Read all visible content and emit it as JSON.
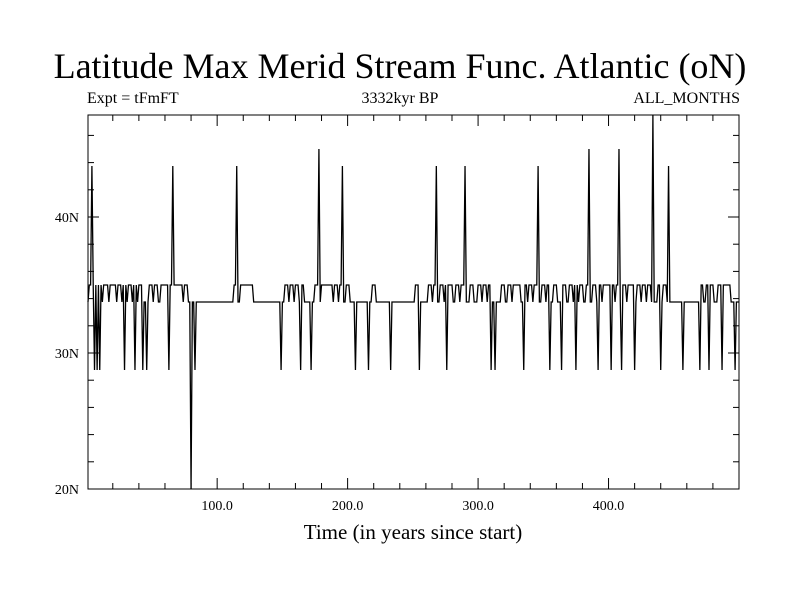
{
  "chart_data": {
    "type": "line",
    "title": "Latitude Max Merid Stream Func. Atlantic (oN)",
    "left_text": "Expt = tFmFT",
    "center_text": "3332kyr BP",
    "right_text": "ALL_MONTHS",
    "xlabel": "Time (in years since start)",
    "ylabel": "",
    "xlim": [
      1,
      500
    ],
    "ylim": [
      20,
      47.5
    ],
    "grid": false,
    "x_ticks": [
      {
        "value": 100,
        "label": "100.0"
      },
      {
        "value": 200,
        "label": "200.0"
      },
      {
        "value": 300,
        "label": "300.0"
      },
      {
        "value": 400,
        "label": "400.0"
      }
    ],
    "y_ticks": [
      {
        "value": 20,
        "label": "20N"
      },
      {
        "value": 30,
        "label": "30N"
      },
      {
        "value": 40,
        "label": "40N"
      }
    ],
    "baseline": 33.75,
    "levels": {
      "high": 35.0,
      "low": 28.75
    },
    "spikes": [
      {
        "x": 4,
        "y": 43.75
      },
      {
        "x": 66,
        "y": 43.75
      },
      {
        "x": 80,
        "y": 20.0
      },
      {
        "x": 115,
        "y": 43.75
      },
      {
        "x": 178,
        "y": 45.0
      },
      {
        "x": 196,
        "y": 43.75
      },
      {
        "x": 268,
        "y": 43.75
      },
      {
        "x": 290,
        "y": 43.75
      },
      {
        "x": 346,
        "y": 43.75
      },
      {
        "x": 385,
        "y": 45.0
      },
      {
        "x": 408,
        "y": 45.0
      },
      {
        "x": 434,
        "y": 47.5
      },
      {
        "x": 446,
        "y": 43.75
      }
    ],
    "highs": [
      2,
      5,
      9,
      13,
      14,
      18,
      20,
      24,
      28,
      32,
      36,
      40,
      41,
      48,
      52,
      57,
      60,
      62,
      65,
      68,
      71,
      75,
      113,
      118,
      121,
      122,
      125,
      152,
      156,
      160,
      164,
      175,
      180,
      183,
      186,
      190,
      194,
      199,
      219,
      252,
      262,
      266,
      271,
      275,
      278,
      283,
      287,
      294,
      300,
      304,
      308,
      318,
      323,
      327,
      330,
      335,
      339,
      343,
      349,
      353,
      358,
      365,
      370,
      374,
      378,
      383,
      388,
      392,
      396,
      399,
      402,
      406,
      411,
      415,
      418,
      422,
      426,
      430,
      438,
      442,
      470,
      475,
      478,
      484,
      488,
      491
    ],
    "lows": [
      6,
      8,
      10,
      29,
      37,
      43,
      46,
      63,
      83,
      149,
      164,
      172,
      206,
      216,
      233,
      255,
      276,
      310,
      313,
      335,
      355,
      364,
      375,
      392,
      402,
      410,
      420,
      440,
      457,
      470,
      477,
      487,
      497
    ]
  }
}
